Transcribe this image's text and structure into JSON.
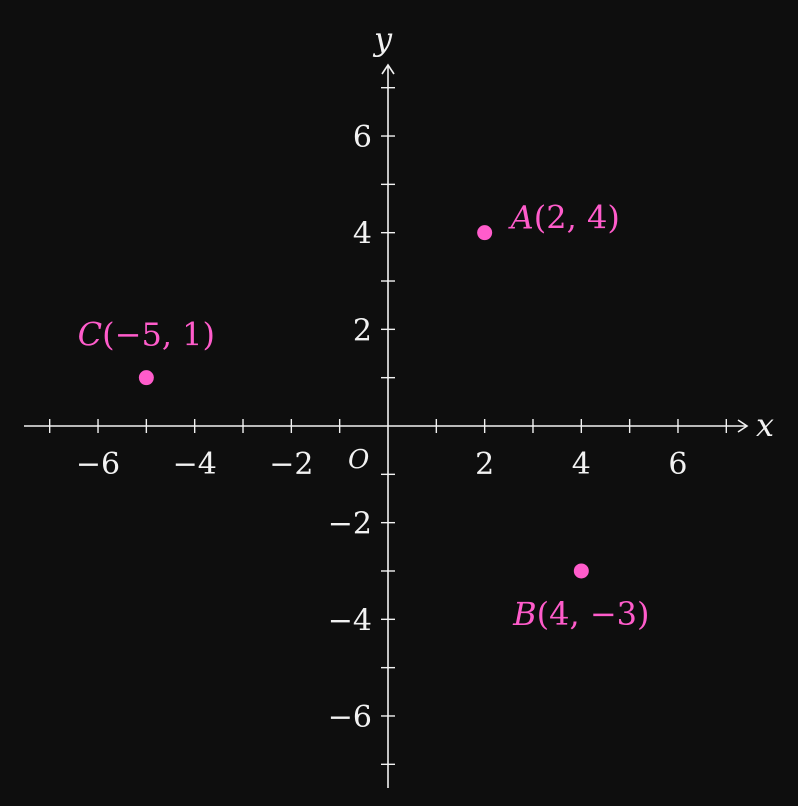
{
  "axes": {
    "x_label": "x",
    "y_label": "y",
    "origin_label": "O",
    "x_range": [
      -7.5,
      7.5
    ],
    "y_range": [
      -7.5,
      7.5
    ],
    "tick_step": 1,
    "label_step": 2,
    "colors": {
      "axis": "#f2f2f2",
      "background": "#0e0e0e"
    }
  },
  "chart_data": {
    "type": "scatter",
    "xlabel": "x",
    "ylabel": "y",
    "xlim": [
      -7.5,
      7.5
    ],
    "ylim": [
      -7.5,
      7.5
    ],
    "x_tick_labels": [
      "−6",
      "−4",
      "−2",
      "2",
      "4",
      "6"
    ],
    "y_tick_labels": [
      "6",
      "4",
      "2",
      "−2",
      "−4",
      "−6"
    ],
    "point_color": "#ff5ccb",
    "points": [
      {
        "name": "A",
        "x": 2,
        "y": 4,
        "coords": "(2, 4)"
      },
      {
        "name": "B",
        "x": 4,
        "y": -3,
        "coords": "(4, −3)"
      },
      {
        "name": "C",
        "x": -5,
        "y": 1,
        "coords": "(−5, 1)"
      }
    ]
  }
}
